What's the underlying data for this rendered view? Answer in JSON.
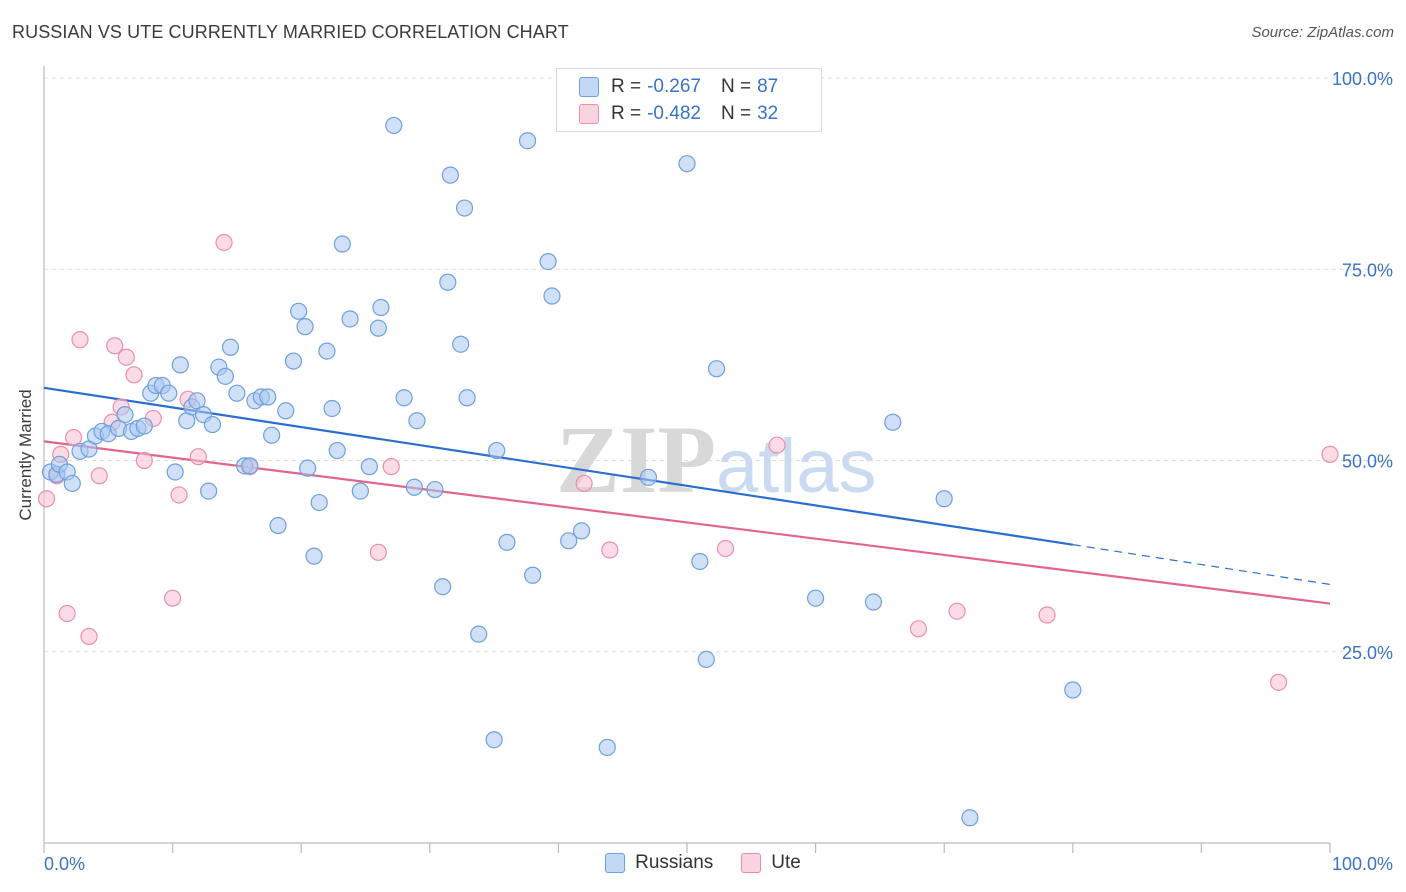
{
  "title": "RUSSIAN VS UTE CURRENTLY MARRIED CORRELATION CHART",
  "source": "Source: ZipAtlas.com",
  "watermark": {
    "zip": "ZIP",
    "atlas": "atlas"
  },
  "legend_top": [
    {
      "r_label": "R =",
      "r_value": "-0.267",
      "n_label": "N =",
      "n_value": "87"
    },
    {
      "r_label": "R =",
      "r_value": "-0.482",
      "n_label": "N =",
      "n_value": "32"
    }
  ],
  "legend_bottom": [
    "Russians",
    "Ute"
  ],
  "colors": {
    "russians_fill": "#aac8f0",
    "russians_stroke": "#6f9fdc",
    "russians_line": "#2a6fce",
    "ute_fill": "#f7bfd2",
    "ute_stroke": "#e98fae",
    "ute_line": "#e0668f",
    "tick_label": "#3a72c5",
    "grid": "#dddddd"
  },
  "chart_data": {
    "type": "scatter",
    "title": "RUSSIAN VS UTE CURRENTLY MARRIED CORRELATION CHART",
    "xlabel": "",
    "ylabel": "Currently Married",
    "xlim": [
      0,
      100
    ],
    "ylim": [
      0,
      100
    ],
    "x_tick_labels": [
      "0.0%",
      "100.0%"
    ],
    "y_tick_labels": [
      "25.0%",
      "50.0%",
      "75.0%",
      "100.0%"
    ],
    "y_ticks": [
      25,
      50,
      75,
      100
    ],
    "grid": true,
    "legend_position": "top-center",
    "series": [
      {
        "name": "Russians",
        "R": -0.267,
        "N": 87,
        "trend": {
          "x0": 0,
          "y0": 59.5,
          "x1": 80,
          "y1": 39.0,
          "dashed_to_x": 100,
          "dashed_to_y": 33.8
        },
        "points": [
          [
            0.5,
            48.5
          ],
          [
            1.0,
            48.2
          ],
          [
            1.2,
            49.5
          ],
          [
            1.8,
            48.5
          ],
          [
            2.2,
            47.0
          ],
          [
            2.8,
            51.2
          ],
          [
            3.5,
            51.5
          ],
          [
            4.0,
            53.2
          ],
          [
            4.5,
            53.8
          ],
          [
            5.0,
            53.5
          ],
          [
            5.8,
            54.2
          ],
          [
            6.3,
            56.0
          ],
          [
            6.8,
            53.8
          ],
          [
            7.3,
            54.2
          ],
          [
            7.8,
            54.5
          ],
          [
            8.3,
            58.8
          ],
          [
            8.7,
            59.8
          ],
          [
            9.2,
            59.8
          ],
          [
            9.7,
            58.8
          ],
          [
            10.2,
            48.5
          ],
          [
            10.6,
            62.5
          ],
          [
            11.1,
            55.2
          ],
          [
            11.5,
            57.0
          ],
          [
            11.9,
            57.8
          ],
          [
            12.4,
            56.0
          ],
          [
            12.8,
            46.0
          ],
          [
            13.1,
            54.7
          ],
          [
            13.6,
            62.2
          ],
          [
            14.1,
            61.0
          ],
          [
            14.5,
            64.8
          ],
          [
            15.0,
            58.8
          ],
          [
            15.6,
            49.3
          ],
          [
            16.0,
            49.3
          ],
          [
            16.4,
            57.8
          ],
          [
            16.9,
            58.3
          ],
          [
            17.4,
            58.3
          ],
          [
            17.7,
            53.3
          ],
          [
            18.2,
            41.5
          ],
          [
            18.8,
            56.5
          ],
          [
            19.4,
            63.0
          ],
          [
            19.8,
            69.5
          ],
          [
            20.3,
            67.5
          ],
          [
            20.5,
            49.0
          ],
          [
            21.0,
            37.5
          ],
          [
            21.4,
            44.5
          ],
          [
            22.0,
            64.3
          ],
          [
            22.4,
            56.8
          ],
          [
            22.8,
            51.3
          ],
          [
            23.2,
            78.3
          ],
          [
            23.8,
            68.5
          ],
          [
            24.6,
            46.0
          ],
          [
            25.3,
            49.2
          ],
          [
            26.0,
            67.3
          ],
          [
            26.2,
            70.0
          ],
          [
            27.2,
            93.8
          ],
          [
            28.0,
            58.2
          ],
          [
            28.8,
            46.5
          ],
          [
            29.0,
            55.2
          ],
          [
            30.4,
            46.2
          ],
          [
            31.0,
            33.5
          ],
          [
            31.4,
            73.3
          ],
          [
            31.6,
            87.3
          ],
          [
            32.4,
            65.2
          ],
          [
            32.7,
            83.0
          ],
          [
            32.9,
            58.2
          ],
          [
            33.8,
            27.3
          ],
          [
            35.0,
            13.5
          ],
          [
            35.2,
            51.3
          ],
          [
            36.0,
            39.3
          ],
          [
            37.6,
            91.8
          ],
          [
            38.0,
            35.0
          ],
          [
            39.2,
            76.0
          ],
          [
            39.5,
            71.5
          ],
          [
            40.8,
            39.5
          ],
          [
            41.8,
            40.8
          ],
          [
            43.8,
            12.5
          ],
          [
            47.0,
            47.8
          ],
          [
            50.0,
            88.8
          ],
          [
            51.0,
            36.8
          ],
          [
            51.5,
            24.0
          ],
          [
            52.3,
            62.0
          ],
          [
            64.5,
            31.5
          ],
          [
            80.0,
            20.0
          ],
          [
            72.0,
            3.3
          ],
          [
            60.0,
            32.0
          ],
          [
            66.0,
            55.0
          ],
          [
            70.0,
            45.0
          ]
        ]
      },
      {
        "name": "Ute",
        "R": -0.482,
        "N": 32,
        "trend": {
          "x0": 0,
          "y0": 52.5,
          "x1": 100,
          "y1": 31.3
        },
        "points": [
          [
            0.2,
            45.0
          ],
          [
            1.0,
            48.0
          ],
          [
            1.3,
            50.8
          ],
          [
            1.8,
            30.0
          ],
          [
            2.3,
            53.0
          ],
          [
            2.8,
            65.8
          ],
          [
            3.5,
            27.0
          ],
          [
            4.3,
            48.0
          ],
          [
            5.3,
            55.0
          ],
          [
            5.5,
            65.0
          ],
          [
            6.0,
            57.0
          ],
          [
            6.4,
            63.5
          ],
          [
            7.0,
            61.2
          ],
          [
            7.8,
            50.0
          ],
          [
            8.5,
            55.5
          ],
          [
            10.0,
            32.0
          ],
          [
            10.5,
            45.5
          ],
          [
            11.2,
            58.0
          ],
          [
            12.0,
            50.5
          ],
          [
            14.0,
            78.5
          ],
          [
            16.0,
            49.2
          ],
          [
            26.0,
            38.0
          ],
          [
            27.0,
            49.2
          ],
          [
            42.0,
            47.0
          ],
          [
            44.0,
            38.3
          ],
          [
            53.0,
            38.5
          ],
          [
            57.0,
            52.0
          ],
          [
            68.0,
            28.0
          ],
          [
            71.0,
            30.3
          ],
          [
            78.0,
            29.8
          ],
          [
            96.0,
            21.0
          ],
          [
            100.0,
            50.8
          ]
        ]
      }
    ]
  }
}
